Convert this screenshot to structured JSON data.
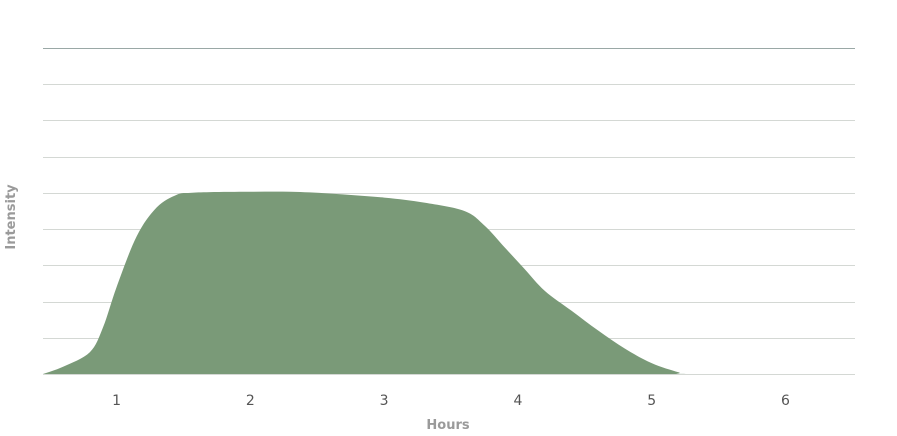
{
  "chart_data": {
    "type": "area",
    "title": "",
    "xlabel": "Hours",
    "ylabel": "Intensity",
    "xlim": [
      0.45,
      6.52
    ],
    "ylim": [
      0,
      9
    ],
    "x_ticks": [
      1,
      2,
      3,
      4,
      5,
      6
    ],
    "y_gridlines": [
      0,
      1,
      2,
      3,
      4,
      5,
      6,
      7,
      8,
      9
    ],
    "grid": true,
    "legend": "none",
    "colors": {
      "fill": "#7a9a78",
      "grid_top": "#9aa8a6",
      "grid": "#d4d8d4"
    },
    "series": [
      {
        "x": [
          0.45,
          0.6,
          0.8,
          0.9,
          1.0,
          1.15,
          1.3,
          1.45,
          1.55,
          1.7,
          2.0,
          2.3,
          2.6,
          3.0,
          3.3,
          3.6,
          3.75,
          3.9,
          4.05,
          4.2,
          4.4,
          4.6,
          4.8,
          5.0,
          5.2,
          5.3,
          6.52
        ],
        "values": [
          0,
          0.2,
          0.6,
          1.3,
          2.4,
          3.8,
          4.6,
          4.95,
          5.0,
          5.02,
          5.03,
          5.03,
          4.98,
          4.87,
          4.73,
          4.5,
          4.1,
          3.5,
          2.9,
          2.3,
          1.75,
          1.2,
          0.7,
          0.3,
          0.05,
          0,
          0
        ]
      }
    ]
  }
}
